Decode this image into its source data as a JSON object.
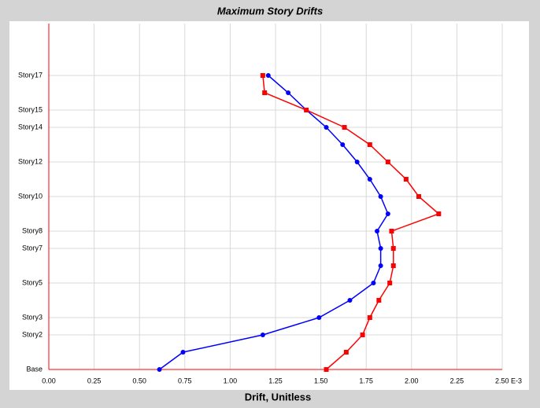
{
  "chart_data": {
    "type": "line",
    "orientation": "horizontal",
    "title": "Maximum Story Drifts",
    "x_label": "Drift, Unitless",
    "categories": [
      "Base",
      null,
      "Story2",
      "Story3",
      null,
      "Story5",
      null,
      "Story7",
      "Story8",
      null,
      "Story10",
      null,
      "Story12",
      null,
      "Story14",
      "Story15",
      null,
      "Story17"
    ],
    "series": [
      {
        "color": "#0000ff",
        "marker": "circle",
        "values": [
          0.61,
          0.74,
          1.18,
          1.49,
          1.66,
          1.79,
          1.83,
          1.83,
          1.81,
          1.87,
          1.83,
          1.77,
          1.7,
          1.62,
          1.53,
          1.42,
          1.32,
          1.21
        ]
      },
      {
        "color": "#ff0000",
        "marker": "square",
        "values": [
          1.53,
          1.64,
          1.73,
          1.77,
          1.82,
          1.88,
          1.9,
          1.9,
          1.89,
          2.15,
          2.04,
          1.97,
          1.87,
          1.77,
          1.63,
          1.42,
          1.19,
          1.18
        ]
      }
    ],
    "xlim": [
      0,
      2.5
    ],
    "xticks": [
      {
        "value": 0,
        "label": "0.00"
      },
      {
        "value": 0.25,
        "label": "0.25"
      },
      {
        "value": 0.5,
        "label": "0.50"
      },
      {
        "value": 0.75,
        "label": "0.75"
      },
      {
        "value": 1,
        "label": "1.00"
      },
      {
        "value": 1.25,
        "label": "1.25"
      },
      {
        "value": 1.5,
        "label": "1.50"
      },
      {
        "value": 1.75,
        "label": "1.75"
      },
      {
        "value": 2,
        "label": "2.00"
      },
      {
        "value": 2.25,
        "label": "2.25"
      },
      {
        "value": 2.5,
        "label": "2.50 E-3"
      }
    ],
    "grid": true
  }
}
